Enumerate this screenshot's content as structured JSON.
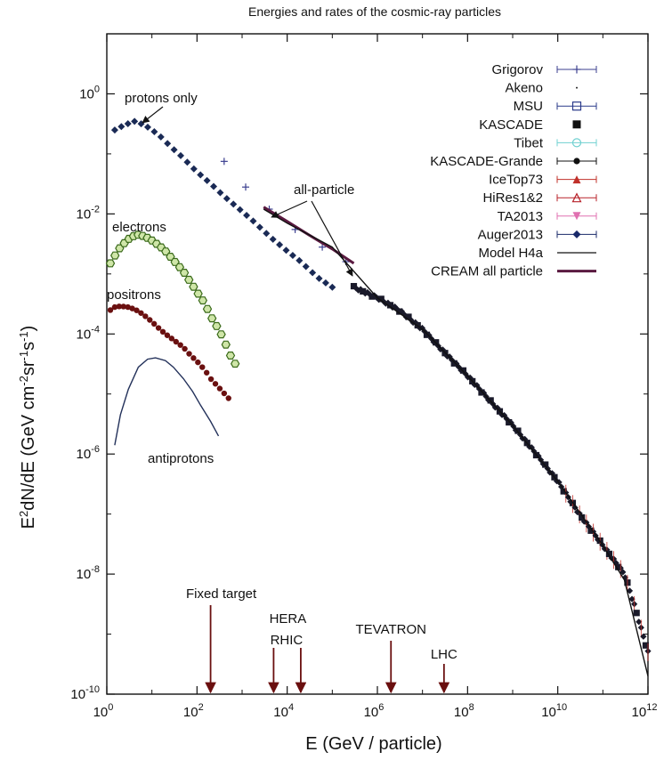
{
  "chart_data": {
    "type": "scatter",
    "title": "Energies and rates of the cosmic-ray particles",
    "xlabel": "E (GeV / particle)",
    "ylabel": "E2dN/dE (GeV cm-2sr-1s-1)",
    "xscale": "log",
    "yscale": "log",
    "xlim": [
      1,
      1000000000000.0
    ],
    "ylim": [
      1e-10,
      10
    ],
    "grid": false,
    "legend_position": "top-right",
    "x_ticks": [
      {
        "base": "10",
        "exp": "0",
        "value": 1
      },
      {
        "base": "10",
        "exp": "2",
        "value": 100
      },
      {
        "base": "10",
        "exp": "4",
        "value": 10000
      },
      {
        "base": "10",
        "exp": "6",
        "value": 1000000
      },
      {
        "base": "10",
        "exp": "8",
        "value": 100000000
      },
      {
        "base": "10",
        "exp": "10",
        "value": 10000000000
      },
      {
        "base": "10",
        "exp": "12",
        "value": 1000000000000
      }
    ],
    "y_ticks": [
      {
        "base": "10",
        "exp": "0",
        "value": 1
      },
      {
        "base": "10",
        "exp": "-2",
        "value": 0.01
      },
      {
        "base": "10",
        "exp": "-4",
        "value": 0.0001
      },
      {
        "base": "10",
        "exp": "-6",
        "value": 1e-06
      },
      {
        "base": "10",
        "exp": "-8",
        "value": 1e-08
      },
      {
        "base": "10",
        "exp": "-10",
        "value": 1e-10
      }
    ],
    "legend": [
      {
        "name": "Grigorov",
        "marker": "plus",
        "color": "#3b3f8f"
      },
      {
        "name": "Akeno",
        "marker": "dot",
        "color": "#222222"
      },
      {
        "name": "MSU",
        "marker": "open-square",
        "color": "#2a3a8a"
      },
      {
        "name": "KASCADE",
        "marker": "filled-square",
        "color": "#111111"
      },
      {
        "name": "Tibet",
        "marker": "open-circle",
        "color": "#6fd0d0"
      },
      {
        "name": "KASCADE-Grande",
        "marker": "filled-circle",
        "color": "#111111"
      },
      {
        "name": "IceTop73",
        "marker": "filled-triangle",
        "color": "#c0302a"
      },
      {
        "name": "HiRes1&2",
        "marker": "open-triangle",
        "color": "#b8222a"
      },
      {
        "name": "TA2013",
        "marker": "filled-triangle-down",
        "color": "#e070b0"
      },
      {
        "name": "Auger2013",
        "marker": "filled-diamond",
        "color": "#1a2a6a"
      },
      {
        "name": "Model H4a",
        "marker": "line",
        "color": "#111111"
      },
      {
        "name": "CREAM all particle",
        "marker": "thick-line",
        "color": "#5a1a40"
      }
    ],
    "annotations": [
      {
        "text": "protons only"
      },
      {
        "text": "electrons"
      },
      {
        "text": "positrons"
      },
      {
        "text": "antiprotons"
      },
      {
        "text": "all-particle"
      }
    ],
    "accelerators": [
      {
        "label": "Fixed target",
        "energy": 200
      },
      {
        "label": "HERA",
        "energy": 5000
      },
      {
        "label": "RHIC",
        "energy": 20000
      },
      {
        "label": "TEVATRON",
        "energy": 2000000
      },
      {
        "label": "LHC",
        "energy": 30000000
      }
    ],
    "series": [
      {
        "name": "protons only",
        "marker": "filled-diamond",
        "color": "#1a2a55",
        "points": [
          [
            1.5,
            0.25
          ],
          [
            2,
            0.28
          ],
          [
            3,
            0.32
          ],
          [
            4,
            0.35
          ],
          [
            5,
            0.33
          ],
          [
            7,
            0.3
          ],
          [
            10,
            0.25
          ],
          [
            15,
            0.2
          ],
          [
            20,
            0.16
          ],
          [
            30,
            0.12
          ],
          [
            50,
            0.085
          ],
          [
            70,
            0.065
          ],
          [
            100,
            0.05
          ],
          [
            200,
            0.032
          ],
          [
            300,
            0.024
          ],
          [
            500,
            0.017
          ],
          [
            1000,
            0.011
          ],
          [
            2000,
            0.007
          ],
          [
            3000,
            0.0052
          ],
          [
            5000,
            0.0037
          ],
          [
            10000,
            0.0024
          ],
          [
            20000,
            0.0016
          ],
          [
            30000,
            0.0012
          ],
          [
            50000,
            0.00085
          ],
          [
            100000,
            0.0006
          ]
        ]
      },
      {
        "name": "electrons",
        "marker": "open-hexagon",
        "color": "#3a6a1a",
        "points": [
          [
            1.2,
            0.0015
          ],
          [
            1.5,
            0.002
          ],
          [
            2,
            0.0028
          ],
          [
            3,
            0.0038
          ],
          [
            4,
            0.0043
          ],
          [
            5,
            0.0045
          ],
          [
            7,
            0.0042
          ],
          [
            10,
            0.0036
          ],
          [
            15,
            0.0029
          ],
          [
            20,
            0.0024
          ],
          [
            30,
            0.0017
          ],
          [
            50,
            0.0011
          ],
          [
            70,
            0.00075
          ],
          [
            100,
            0.0005
          ],
          [
            150,
            0.00032
          ],
          [
            200,
            0.0002
          ],
          [
            300,
            0.00012
          ],
          [
            400,
            8e-05
          ],
          [
            500,
            5e-05
          ],
          [
            700,
            3.2e-05
          ]
        ]
      },
      {
        "name": "positrons",
        "marker": "filled-circle",
        "color": "#6a1010",
        "points": [
          [
            1.2,
            0.00025
          ],
          [
            1.5,
            0.00028
          ],
          [
            2,
            0.00029
          ],
          [
            3,
            0.00028
          ],
          [
            4,
            0.00026
          ],
          [
            5,
            0.00024
          ],
          [
            7,
            0.0002
          ],
          [
            10,
            0.00016
          ],
          [
            15,
            0.00012
          ],
          [
            20,
            0.0001
          ],
          [
            30,
            8e-05
          ],
          [
            50,
            6e-05
          ],
          [
            70,
            4.5e-05
          ],
          [
            100,
            3.5e-05
          ],
          [
            150,
            2.5e-05
          ],
          [
            200,
            1.8e-05
          ],
          [
            300,
            1.3e-05
          ],
          [
            500,
            8.5e-06
          ]
        ]
      },
      {
        "name": "antiprotons",
        "marker": "line",
        "color": "#23315a",
        "points": [
          [
            1.5,
            1.4e-06
          ],
          [
            2,
            4.5e-06
          ],
          [
            3,
            1.2e-05
          ],
          [
            5,
            2.8e-05
          ],
          [
            8,
            3.8e-05
          ],
          [
            12,
            4e-05
          ],
          [
            20,
            3.6e-05
          ],
          [
            30,
            2.8e-05
          ],
          [
            50,
            1.8e-05
          ],
          [
            80,
            1.1e-05
          ],
          [
            120,
            6.5e-06
          ],
          [
            200,
            3.5e-06
          ],
          [
            300,
            2e-06
          ]
        ]
      },
      {
        "name": "Grigorov",
        "marker": "plus",
        "color": "#3b3f8f",
        "points": [
          [
            400,
            0.075
          ],
          [
            1200,
            0.028
          ],
          [
            4000,
            0.012
          ],
          [
            15000,
            0.0055
          ],
          [
            60000,
            0.0028
          ],
          [
            200000,
            0.0016
          ]
        ]
      },
      {
        "name": "all-particle data",
        "marker": "filled-diamond",
        "color": "#1a1a2a",
        "points": [
          [
            300000,
            0.0006
          ],
          [
            1000000,
            0.0004
          ],
          [
            3000000,
            0.00025
          ],
          [
            10000000,
            0.00012
          ],
          [
            30000000,
            5e-05
          ],
          [
            100000000,
            2e-05
          ],
          [
            300000000,
            8e-06
          ],
          [
            1000000000,
            3e-06
          ],
          [
            3000000000,
            1.1e-06
          ],
          [
            10000000000,
            3.5e-07
          ],
          [
            30000000000,
            1e-07
          ],
          [
            100000000000,
            3e-08
          ],
          [
            300000000000,
            1e-08
          ],
          [
            500000000000,
            3e-09
          ],
          [
            1000000000000,
            5e-10
          ]
        ]
      },
      {
        "name": "CREAM all particle",
        "marker": "thick-line",
        "color": "#5a1a40",
        "points": [
          [
            3000,
            0.013
          ],
          [
            10000,
            0.0075
          ],
          [
            30000,
            0.0045
          ],
          [
            100000,
            0.0026
          ],
          [
            300000,
            0.0015
          ]
        ]
      },
      {
        "name": "Model H4a",
        "marker": "line",
        "color": "#111111",
        "points": [
          [
            3000,
            0.012
          ],
          [
            10000,
            0.007
          ],
          [
            100000,
            0.0028
          ],
          [
            1000000,
            0.0004
          ],
          [
            10000000,
            0.00012
          ],
          [
            100000000,
            2e-05
          ],
          [
            1000000000,
            3e-06
          ],
          [
            10000000000,
            3.5e-07
          ],
          [
            100000000000,
            3e-08
          ],
          [
            300000000000,
            8e-09
          ],
          [
            1000000000000,
            2e-10
          ]
        ]
      }
    ]
  }
}
